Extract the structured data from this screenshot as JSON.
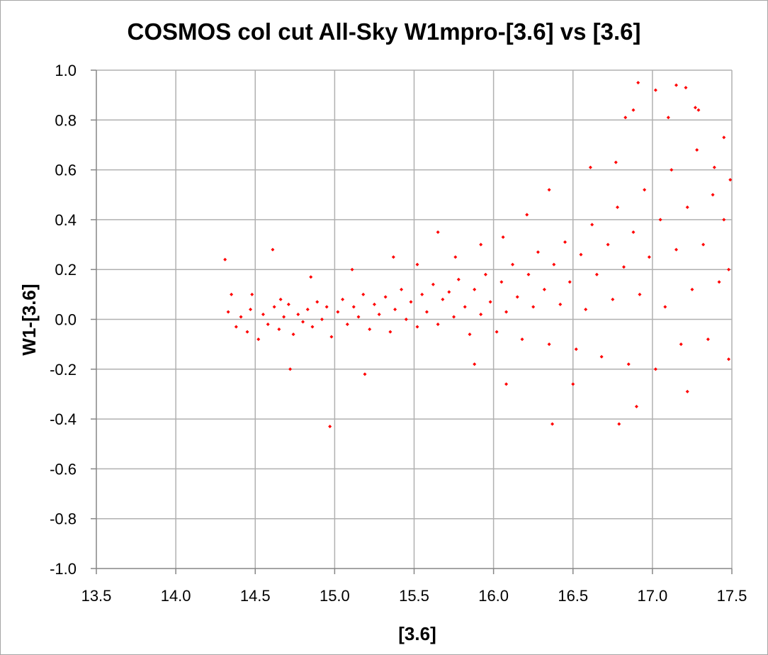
{
  "chart_data": {
    "type": "scatter",
    "title": "COSMOS col cut All-Sky W1mpro-[3.6] vs [3.6]",
    "xlabel": "[3.6]",
    "ylabel": "W1-[3.6]",
    "xlim": [
      13.5,
      17.5
    ],
    "ylim": [
      -1.0,
      1.0
    ],
    "x_ticks": [
      "13.5",
      "14.0",
      "14.5",
      "15.0",
      "15.5",
      "16.0",
      "16.5",
      "17.0",
      "17.5"
    ],
    "y_ticks": [
      "1.0",
      "0.8",
      "0.6",
      "0.4",
      "0.2",
      "0.0",
      "-0.2",
      "-0.4",
      "-0.6",
      "-0.8",
      "-1.0"
    ],
    "grid": true,
    "marker_color": "#ff0000",
    "series": [
      {
        "points": [
          [
            14.31,
            0.24
          ],
          [
            14.35,
            0.1
          ],
          [
            14.61,
            0.28
          ],
          [
            14.72,
            -0.2
          ],
          [
            14.97,
            -0.43
          ],
          [
            15.19,
            -0.22
          ],
          [
            15.65,
            0.35
          ],
          [
            15.88,
            -0.18
          ],
          [
            16.08,
            -0.26
          ],
          [
            16.37,
            -0.42
          ],
          [
            16.5,
            -0.26
          ],
          [
            16.79,
            -0.42
          ],
          [
            16.9,
            -0.35
          ],
          [
            16.91,
            0.95
          ],
          [
            17.02,
            0.92
          ],
          [
            17.15,
            0.94
          ],
          [
            17.21,
            0.93
          ],
          [
            17.22,
            -0.29
          ],
          [
            17.48,
            -0.16
          ],
          [
            16.83,
            0.81
          ],
          [
            16.88,
            0.84
          ],
          [
            17.1,
            0.81
          ],
          [
            17.27,
            0.85
          ],
          [
            17.29,
            0.84
          ],
          [
            17.45,
            0.73
          ],
          [
            17.49,
            0.56
          ],
          [
            17.39,
            0.61
          ],
          [
            16.77,
            0.63
          ],
          [
            16.61,
            0.61
          ],
          [
            16.35,
            0.52
          ],
          [
            16.21,
            0.42
          ],
          [
            16.06,
            0.33
          ],
          [
            15.92,
            0.3
          ],
          [
            15.76,
            0.25
          ],
          [
            15.37,
            0.25
          ],
          [
            15.52,
            0.22
          ],
          [
            15.11,
            0.2
          ],
          [
            14.85,
            0.17
          ],
          [
            14.48,
            0.1
          ],
          [
            14.66,
            0.08
          ],
          [
            14.33,
            0.03
          ],
          [
            14.38,
            -0.03
          ],
          [
            14.41,
            0.01
          ],
          [
            14.45,
            -0.05
          ],
          [
            14.47,
            0.04
          ],
          [
            14.52,
            -0.08
          ],
          [
            14.55,
            0.02
          ],
          [
            14.58,
            -0.02
          ],
          [
            14.62,
            0.05
          ],
          [
            14.65,
            -0.04
          ],
          [
            14.68,
            0.01
          ],
          [
            14.71,
            0.06
          ],
          [
            14.74,
            -0.06
          ],
          [
            14.77,
            0.02
          ],
          [
            14.8,
            -0.01
          ],
          [
            14.83,
            0.04
          ],
          [
            14.86,
            -0.03
          ],
          [
            14.89,
            0.07
          ],
          [
            14.92,
            0.0
          ],
          [
            14.95,
            0.05
          ],
          [
            14.98,
            -0.07
          ],
          [
            15.02,
            0.03
          ],
          [
            15.05,
            0.08
          ],
          [
            15.08,
            -0.02
          ],
          [
            15.12,
            0.05
          ],
          [
            15.15,
            0.01
          ],
          [
            15.18,
            0.1
          ],
          [
            15.22,
            -0.04
          ],
          [
            15.25,
            0.06
          ],
          [
            15.28,
            0.02
          ],
          [
            15.32,
            0.09
          ],
          [
            15.35,
            -0.05
          ],
          [
            15.38,
            0.04
          ],
          [
            15.42,
            0.12
          ],
          [
            15.45,
            0.0
          ],
          [
            15.48,
            0.07
          ],
          [
            15.52,
            -0.03
          ],
          [
            15.55,
            0.1
          ],
          [
            15.58,
            0.03
          ],
          [
            15.62,
            0.14
          ],
          [
            15.65,
            -0.02
          ],
          [
            15.68,
            0.08
          ],
          [
            15.72,
            0.11
          ],
          [
            15.75,
            0.01
          ],
          [
            15.78,
            0.16
          ],
          [
            15.82,
            0.05
          ],
          [
            15.85,
            -0.06
          ],
          [
            15.88,
            0.12
          ],
          [
            15.92,
            0.02
          ],
          [
            15.95,
            0.18
          ],
          [
            15.98,
            0.07
          ],
          [
            16.02,
            -0.05
          ],
          [
            16.05,
            0.15
          ],
          [
            16.08,
            0.03
          ],
          [
            16.12,
            0.22
          ],
          [
            16.15,
            0.09
          ],
          [
            16.18,
            -0.08
          ],
          [
            16.22,
            0.18
          ],
          [
            16.25,
            0.05
          ],
          [
            16.28,
            0.27
          ],
          [
            16.32,
            0.12
          ],
          [
            16.35,
            -0.1
          ],
          [
            16.38,
            0.22
          ],
          [
            16.42,
            0.06
          ],
          [
            16.45,
            0.31
          ],
          [
            16.48,
            0.15
          ],
          [
            16.52,
            -0.12
          ],
          [
            16.55,
            0.26
          ],
          [
            16.58,
            0.04
          ],
          [
            16.62,
            0.38
          ],
          [
            16.65,
            0.18
          ],
          [
            16.68,
            -0.15
          ],
          [
            16.72,
            0.3
          ],
          [
            16.75,
            0.08
          ],
          [
            16.78,
            0.45
          ],
          [
            16.82,
            0.21
          ],
          [
            16.85,
            -0.18
          ],
          [
            16.88,
            0.35
          ],
          [
            16.92,
            0.1
          ],
          [
            16.95,
            0.52
          ],
          [
            16.98,
            0.25
          ],
          [
            17.02,
            -0.2
          ],
          [
            17.05,
            0.4
          ],
          [
            17.08,
            0.05
          ],
          [
            17.12,
            0.6
          ],
          [
            17.15,
            0.28
          ],
          [
            17.18,
            -0.1
          ],
          [
            17.22,
            0.45
          ],
          [
            17.25,
            0.12
          ],
          [
            17.28,
            0.68
          ],
          [
            17.32,
            0.3
          ],
          [
            17.35,
            -0.08
          ],
          [
            17.38,
            0.5
          ],
          [
            17.42,
            0.15
          ],
          [
            17.45,
            0.4
          ],
          [
            17.48,
            0.2
          ]
        ]
      }
    ]
  }
}
